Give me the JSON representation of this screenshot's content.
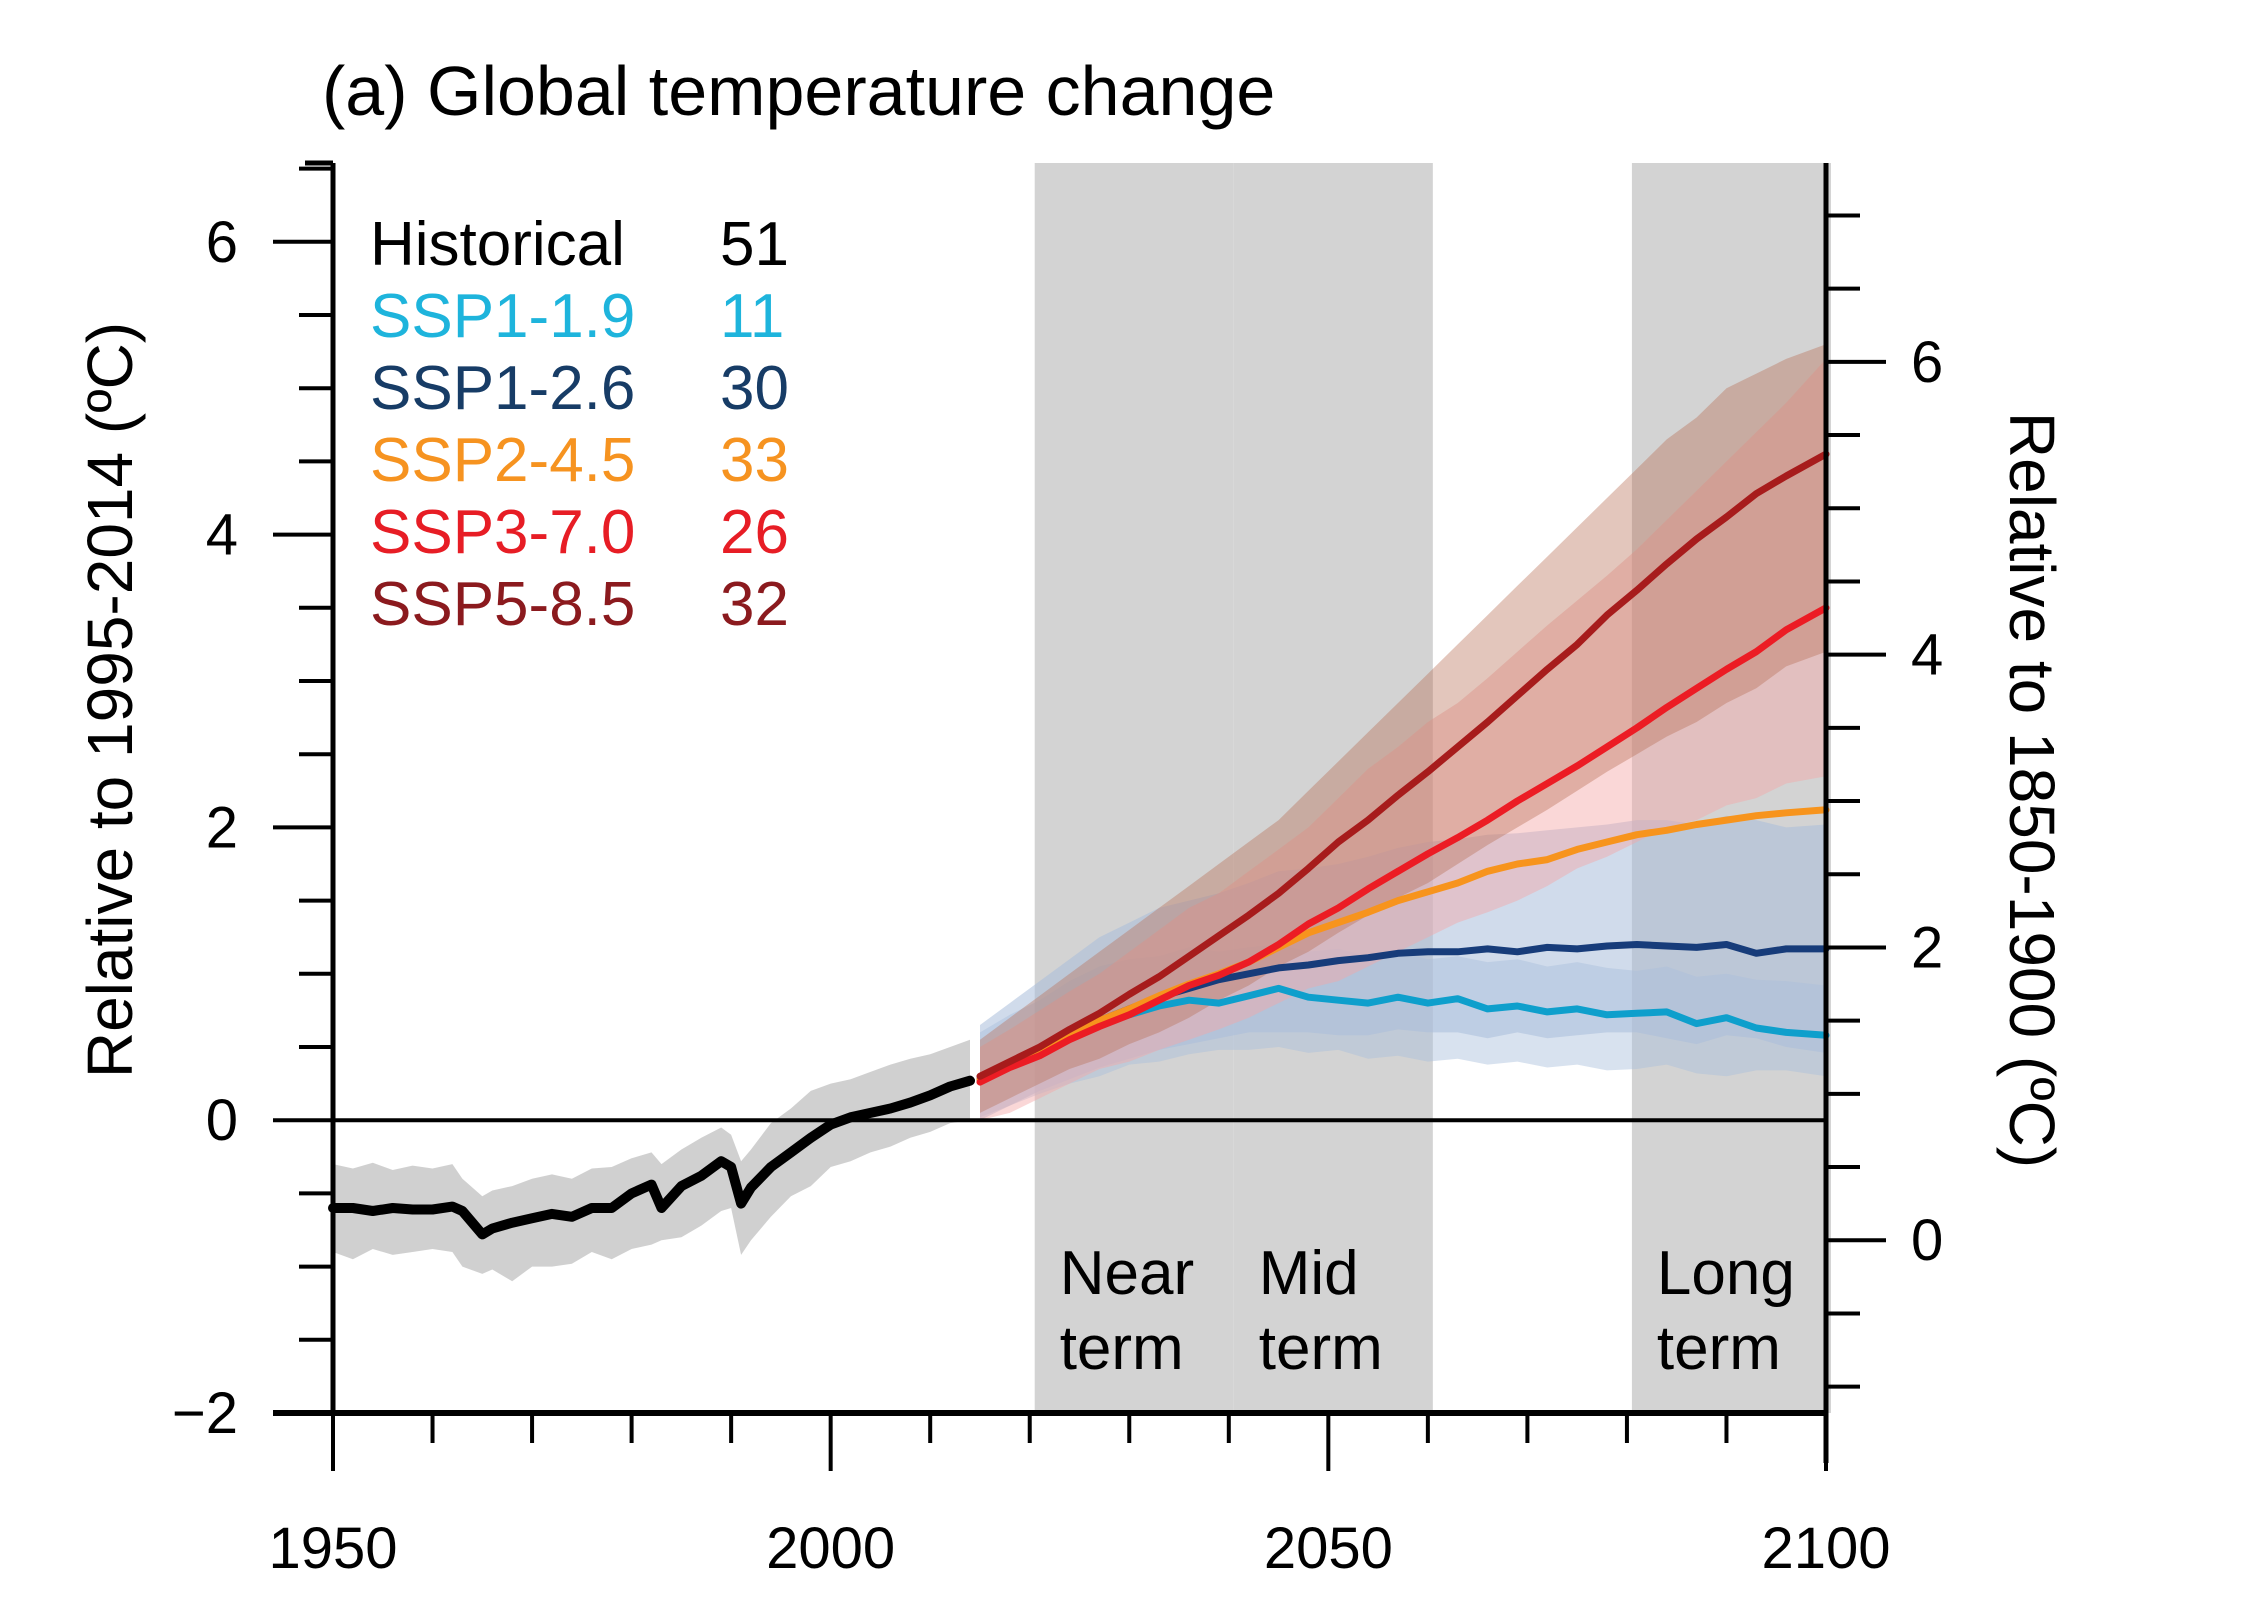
{
  "chart_data": {
    "type": "line",
    "title": "(a) Global temperature change",
    "xlabel": "",
    "ylabel": "Relative to 1995-2014 (ºC)",
    "ylabel_right": "Relative to 1850-1900 (ºC)",
    "xlim": [
      1950,
      2100
    ],
    "ylim": [
      -2,
      6.5
    ],
    "right_axis_offset": 0.82,
    "x_ticks": [
      1950,
      2000,
      2050,
      2100
    ],
    "x_tick_labels": [
      "1950",
      "2000",
      "2050",
      "2100"
    ],
    "y_ticks": [
      -2,
      0,
      2,
      4,
      6
    ],
    "y_tick_labels": [
      "−2",
      "0",
      "2",
      "4",
      "6"
    ],
    "y_right_ticks": [
      0,
      2,
      4,
      6
    ],
    "y_right_tick_labels": [
      "0",
      "2",
      "4",
      "6"
    ],
    "zero_line": true,
    "grid": false,
    "legend_position": "top-left",
    "periods": [
      {
        "name": "near-term",
        "label_lines": [
          "Near",
          "term"
        ],
        "start": 2021,
        "end": 2040
      },
      {
        "name": "mid-term",
        "label_lines": [
          "Mid",
          "term"
        ],
        "start": 2041,
        "end": 2060
      },
      {
        "name": "long-term",
        "label_lines": [
          "Long",
          "term"
        ],
        "start": 2081,
        "end": 2100
      }
    ],
    "period_color": "#d3d3d3",
    "series": [
      {
        "name": "Historical",
        "models": 51,
        "color": "#000000",
        "band_color": "#c8c8c8",
        "band_opacity": 0.85,
        "x": [
          1950,
          1952,
          1954,
          1956,
          1958,
          1960,
          1962,
          1963,
          1965,
          1966,
          1968,
          1970,
          1972,
          1974,
          1976,
          1978,
          1980,
          1982,
          1983,
          1985,
          1987,
          1989,
          1990,
          1991,
          1992,
          1994,
          1996,
          1998,
          2000,
          2002,
          2004,
          2006,
          2008,
          2010,
          2012,
          2014
        ],
        "values": [
          -0.6,
          -0.6,
          -0.62,
          -0.6,
          -0.61,
          -0.61,
          -0.59,
          -0.62,
          -0.78,
          -0.74,
          -0.7,
          -0.67,
          -0.64,
          -0.66,
          -0.6,
          -0.6,
          -0.5,
          -0.44,
          -0.6,
          -0.45,
          -0.38,
          -0.28,
          -0.32,
          -0.57,
          -0.46,
          -0.32,
          -0.22,
          -0.12,
          -0.03,
          0.02,
          0.05,
          0.08,
          0.12,
          0.17,
          0.23,
          0.27
        ],
        "lower": [
          -0.9,
          -0.95,
          -0.88,
          -0.92,
          -0.9,
          -0.88,
          -0.9,
          -1.0,
          -1.05,
          -1.02,
          -1.1,
          -1.0,
          -1.0,
          -0.98,
          -0.9,
          -0.95,
          -0.88,
          -0.85,
          -0.82,
          -0.8,
          -0.72,
          -0.62,
          -0.6,
          -0.92,
          -0.82,
          -0.66,
          -0.52,
          -0.45,
          -0.32,
          -0.28,
          -0.22,
          -0.18,
          -0.12,
          -0.08,
          -0.02,
          0.0
        ],
        "upper": [
          -0.3,
          -0.33,
          -0.29,
          -0.34,
          -0.31,
          -0.33,
          -0.3,
          -0.4,
          -0.52,
          -0.48,
          -0.45,
          -0.4,
          -0.37,
          -0.4,
          -0.33,
          -0.32,
          -0.26,
          -0.22,
          -0.3,
          -0.2,
          -0.12,
          -0.05,
          -0.1,
          -0.28,
          -0.2,
          -0.02,
          0.08,
          0.2,
          0.25,
          0.28,
          0.33,
          0.38,
          0.42,
          0.45,
          0.5,
          0.55
        ]
      },
      {
        "name": "SSP1-1.9",
        "models": 11,
        "color": "#1eb4dc",
        "line_color": "#0e9fcc",
        "band_color": "#a9bedb",
        "band_opacity": 0.45,
        "x": [
          2015,
          2018,
          2021,
          2024,
          2027,
          2030,
          2033,
          2036,
          2039,
          2042,
          2045,
          2048,
          2051,
          2054,
          2057,
          2060,
          2063,
          2066,
          2069,
          2072,
          2075,
          2078,
          2081,
          2084,
          2087,
          2090,
          2093,
          2096,
          2100
        ],
        "values": [
          0.28,
          0.38,
          0.48,
          0.56,
          0.65,
          0.72,
          0.78,
          0.82,
          0.8,
          0.85,
          0.9,
          0.84,
          0.82,
          0.8,
          0.84,
          0.8,
          0.83,
          0.76,
          0.78,
          0.74,
          0.76,
          0.72,
          0.73,
          0.74,
          0.66,
          0.7,
          0.63,
          0.6,
          0.58
        ],
        "lower": [
          0.02,
          0.1,
          0.18,
          0.25,
          0.3,
          0.38,
          0.4,
          0.45,
          0.48,
          0.48,
          0.5,
          0.46,
          0.48,
          0.42,
          0.44,
          0.4,
          0.42,
          0.38,
          0.4,
          0.36,
          0.38,
          0.34,
          0.35,
          0.38,
          0.32,
          0.3,
          0.34,
          0.34,
          0.3
        ],
        "upper": [
          0.6,
          0.72,
          0.82,
          0.95,
          1.05,
          1.1,
          1.12,
          1.18,
          1.15,
          1.18,
          1.2,
          1.15,
          1.17,
          1.12,
          1.15,
          1.1,
          1.12,
          1.08,
          1.1,
          1.05,
          1.08,
          1.04,
          1.02,
          1.05,
          0.98,
          1.0,
          0.96,
          0.95,
          0.92
        ]
      },
      {
        "name": "SSP1-2.6",
        "models": 30,
        "color": "#173c66",
        "line_color": "#173c7a",
        "band_color": "#a9bedb",
        "band_opacity": 0.55,
        "x": [
          2015,
          2018,
          2021,
          2024,
          2027,
          2030,
          2033,
          2036,
          2039,
          2042,
          2045,
          2048,
          2051,
          2054,
          2057,
          2060,
          2063,
          2066,
          2069,
          2072,
          2075,
          2078,
          2081,
          2084,
          2087,
          2090,
          2093,
          2096,
          2100
        ],
        "values": [
          0.28,
          0.38,
          0.48,
          0.58,
          0.68,
          0.76,
          0.84,
          0.9,
          0.96,
          1.0,
          1.04,
          1.06,
          1.09,
          1.11,
          1.14,
          1.15,
          1.15,
          1.17,
          1.15,
          1.18,
          1.17,
          1.19,
          1.2,
          1.19,
          1.18,
          1.2,
          1.14,
          1.17,
          1.17
        ],
        "lower": [
          0.0,
          0.1,
          0.2,
          0.28,
          0.36,
          0.42,
          0.48,
          0.52,
          0.56,
          0.6,
          0.6,
          0.6,
          0.58,
          0.58,
          0.62,
          0.6,
          0.6,
          0.56,
          0.6,
          0.56,
          0.58,
          0.6,
          0.6,
          0.56,
          0.52,
          0.58,
          0.56,
          0.5,
          0.46
        ],
        "upper": [
          0.65,
          0.8,
          0.95,
          1.1,
          1.25,
          1.35,
          1.45,
          1.5,
          1.55,
          1.62,
          1.7,
          1.72,
          1.75,
          1.8,
          1.86,
          1.9,
          1.92,
          1.95,
          1.96,
          1.98,
          2.0,
          2.02,
          2.05,
          2.05,
          2.02,
          2.08,
          2.05,
          2.0,
          2.02
        ]
      },
      {
        "name": "SSP2-4.5",
        "models": 33,
        "color": "#f69320",
        "line_color": "#f7941d",
        "band_color": "#e8a0a0",
        "band_opacity": 0.0,
        "x": [
          2015,
          2018,
          2021,
          2024,
          2027,
          2030,
          2033,
          2036,
          2039,
          2042,
          2045,
          2048,
          2051,
          2054,
          2057,
          2060,
          2063,
          2066,
          2069,
          2072,
          2075,
          2078,
          2081,
          2084,
          2087,
          2090,
          2093,
          2096,
          2100
        ],
        "values": [
          0.28,
          0.38,
          0.48,
          0.58,
          0.68,
          0.76,
          0.85,
          0.93,
          1.0,
          1.08,
          1.18,
          1.28,
          1.35,
          1.42,
          1.5,
          1.56,
          1.62,
          1.7,
          1.75,
          1.78,
          1.85,
          1.9,
          1.95,
          1.98,
          2.02,
          2.05,
          2.08,
          2.1,
          2.12
        ],
        "lower": [],
        "upper": []
      },
      {
        "name": "SSP3-7.0",
        "models": 26,
        "color": "#e71d25",
        "line_color": "#ec1c24",
        "band_color": "#f4a6a6",
        "band_opacity": 0.45,
        "x": [
          2015,
          2018,
          2021,
          2024,
          2027,
          2030,
          2033,
          2036,
          2039,
          2042,
          2045,
          2048,
          2051,
          2054,
          2057,
          2060,
          2063,
          2066,
          2069,
          2072,
          2075,
          2078,
          2081,
          2084,
          2087,
          2090,
          2093,
          2096,
          2100
        ],
        "values": [
          0.26,
          0.36,
          0.44,
          0.55,
          0.64,
          0.72,
          0.82,
          0.92,
          0.99,
          1.08,
          1.2,
          1.34,
          1.45,
          1.58,
          1.7,
          1.82,
          1.93,
          2.05,
          2.18,
          2.3,
          2.42,
          2.55,
          2.68,
          2.82,
          2.95,
          3.08,
          3.2,
          3.35,
          3.5
        ],
        "lower": [
          0.0,
          0.05,
          0.15,
          0.25,
          0.35,
          0.4,
          0.48,
          0.55,
          0.62,
          0.7,
          0.8,
          0.9,
          0.95,
          1.05,
          1.15,
          1.25,
          1.35,
          1.42,
          1.5,
          1.6,
          1.72,
          1.8,
          1.9,
          2.0,
          2.05,
          2.15,
          2.2,
          2.3,
          2.35
        ],
        "upper": [
          0.5,
          0.62,
          0.75,
          0.88,
          1.0,
          1.15,
          1.3,
          1.45,
          1.55,
          1.7,
          1.85,
          2.0,
          2.2,
          2.4,
          2.55,
          2.72,
          2.85,
          3.02,
          3.2,
          3.38,
          3.55,
          3.72,
          3.9,
          4.1,
          4.3,
          4.5,
          4.7,
          4.9,
          5.2
        ]
      },
      {
        "name": "SSP5-8.5",
        "models": 32,
        "color": "#8b1a1e",
        "line_color": "#a71c1c",
        "band_color": "#b87058",
        "band_opacity": 0.4,
        "x": [
          2015,
          2018,
          2021,
          2024,
          2027,
          2030,
          2033,
          2036,
          2039,
          2042,
          2045,
          2048,
          2051,
          2054,
          2057,
          2060,
          2063,
          2066,
          2069,
          2072,
          2075,
          2078,
          2081,
          2084,
          2087,
          2090,
          2093,
          2096,
          2100
        ],
        "values": [
          0.3,
          0.4,
          0.5,
          0.62,
          0.73,
          0.86,
          0.98,
          1.12,
          1.26,
          1.4,
          1.55,
          1.72,
          1.9,
          2.05,
          2.22,
          2.38,
          2.55,
          2.72,
          2.9,
          3.08,
          3.25,
          3.45,
          3.62,
          3.8,
          3.97,
          4.12,
          4.28,
          4.4,
          4.55
        ],
        "lower": [
          0.05,
          0.15,
          0.25,
          0.35,
          0.42,
          0.52,
          0.6,
          0.7,
          0.82,
          0.92,
          1.05,
          1.15,
          1.28,
          1.4,
          1.52,
          1.62,
          1.75,
          1.88,
          2.0,
          2.12,
          2.25,
          2.38,
          2.5,
          2.62,
          2.72,
          2.85,
          2.95,
          3.1,
          3.2
        ],
        "upper": [
          0.55,
          0.7,
          0.85,
          1.0,
          1.15,
          1.3,
          1.45,
          1.6,
          1.75,
          1.9,
          2.05,
          2.25,
          2.45,
          2.65,
          2.85,
          3.05,
          3.25,
          3.45,
          3.65,
          3.85,
          4.05,
          4.25,
          4.45,
          4.65,
          4.8,
          5.0,
          5.1,
          5.2,
          5.3
        ]
      }
    ]
  }
}
